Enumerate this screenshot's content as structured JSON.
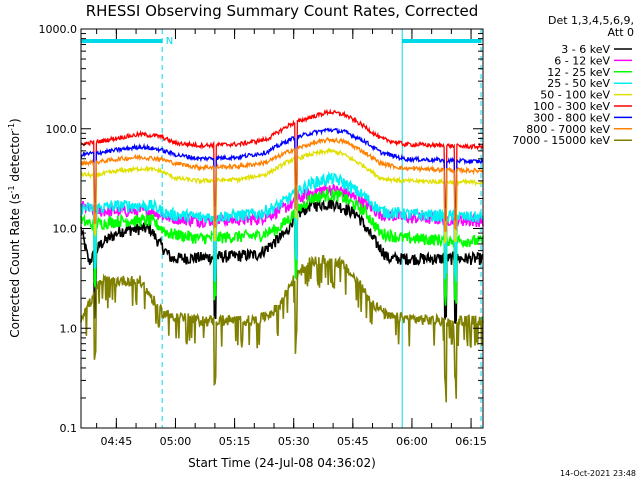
{
  "chart_data": {
    "type": "line",
    "title": "RHESSI Observing Summary Count Rates, Corrected",
    "xlabel": "Start Time (24-Jul-08 04:36:02)",
    "ylabel_main": "Corrected Count Rate (s",
    "ylabel_sup1": "-1",
    "ylabel_mid": " detector",
    "ylabel_sup2": "-1",
    "ylabel_end": ")",
    "yscale": "log",
    "ylim": [
      0.1,
      1000
    ],
    "xlim_minutes": [
      0,
      102
    ],
    "ytick_values": [
      0.1,
      1,
      10,
      100,
      1000
    ],
    "ytick_labels": [
      "0.1",
      "1.0",
      "10.0",
      "100.0",
      "1000.0"
    ],
    "xtick_minutes": [
      8.97,
      23.97,
      38.97,
      53.97,
      68.97,
      83.97,
      98.97
    ],
    "xtick_labels": [
      "04:45",
      "05:00",
      "05:15",
      "05:30",
      "05:45",
      "06:00",
      "06:15"
    ],
    "legend_header": [
      "Det 1,3,4,5,6,9,",
      "Att 0"
    ],
    "footer_date": "14-Oct-2021 23:48",
    "annotations": [
      {
        "text": "N",
        "minute": 21.5,
        "color": "#00d8e8"
      }
    ],
    "markers": {
      "night_bars": [
        [
          0,
          20.6
        ],
        [
          81.5,
          101.5
        ]
      ],
      "vertical_solid_minutes": [
        0,
        81.5
      ],
      "vertical_dashed_minutes": [
        20.6,
        101.5
      ],
      "color": "#00d8e8"
    },
    "series": [
      {
        "name": "3 - 6 keV",
        "color": "#000000",
        "points": [
          [
            0,
            10
          ],
          [
            2,
            4.6
          ],
          [
            5,
            7
          ],
          [
            10,
            9.5
          ],
          [
            15,
            10
          ],
          [
            17.5,
            10
          ],
          [
            20,
            7
          ],
          [
            23,
            5
          ],
          [
            35,
            5.2
          ],
          [
            45,
            5.5
          ],
          [
            52,
            9
          ],
          [
            54,
            13
          ],
          [
            58,
            17
          ],
          [
            64,
            18
          ],
          [
            70,
            14
          ],
          [
            74,
            8
          ],
          [
            78,
            5
          ],
          [
            82,
            5
          ],
          [
            88,
            5
          ],
          [
            100,
            5
          ],
          [
            102,
            5
          ]
        ]
      },
      {
        "name": "6 - 12 keV",
        "color": "#ff00ff",
        "points": [
          [
            0,
            17
          ],
          [
            3,
            15
          ],
          [
            10,
            15
          ],
          [
            18,
            15
          ],
          [
            22,
            13
          ],
          [
            30,
            12
          ],
          [
            45,
            12.5
          ],
          [
            50,
            15
          ],
          [
            54,
            18
          ],
          [
            57,
            22
          ],
          [
            62,
            25
          ],
          [
            66,
            24
          ],
          [
            72,
            18
          ],
          [
            76,
            14
          ],
          [
            82,
            13
          ],
          [
            100,
            12
          ],
          [
            102,
            12
          ]
        ]
      },
      {
        "name": "12 - 25 keV",
        "color": "#00ff00",
        "points": [
          [
            0,
            12
          ],
          [
            3,
            11
          ],
          [
            10,
            12
          ],
          [
            18,
            12
          ],
          [
            22,
            9
          ],
          [
            30,
            8
          ],
          [
            45,
            8.5
          ],
          [
            50,
            10
          ],
          [
            54,
            14
          ],
          [
            58,
            20
          ],
          [
            63,
            22
          ],
          [
            66,
            21
          ],
          [
            72,
            15
          ],
          [
            76,
            9
          ],
          [
            82,
            8
          ],
          [
            100,
            7.5
          ],
          [
            102,
            7.5
          ]
        ]
      },
      {
        "name": "25 - 50 keV",
        "color": "#00f0f0",
        "points": [
          [
            0,
            16
          ],
          [
            3,
            16
          ],
          [
            10,
            17
          ],
          [
            18,
            17
          ],
          [
            22,
            14
          ],
          [
            30,
            13
          ],
          [
            45,
            14
          ],
          [
            50,
            17
          ],
          [
            54,
            22
          ],
          [
            58,
            28
          ],
          [
            63,
            32
          ],
          [
            66,
            30
          ],
          [
            72,
            21
          ],
          [
            76,
            15
          ],
          [
            82,
            14
          ],
          [
            100,
            13
          ],
          [
            102,
            13
          ]
        ]
      },
      {
        "name": "50 - 100 keV",
        "color": "#e0e000",
        "points": [
          [
            0,
            35
          ],
          [
            3,
            34
          ],
          [
            10,
            38
          ],
          [
            16,
            40
          ],
          [
            20,
            38
          ],
          [
            24,
            32
          ],
          [
            30,
            30
          ],
          [
            40,
            31
          ],
          [
            47,
            35
          ],
          [
            53,
            48
          ],
          [
            58,
            55
          ],
          [
            63,
            60
          ],
          [
            66,
            57
          ],
          [
            72,
            42
          ],
          [
            76,
            32
          ],
          [
            82,
            30
          ],
          [
            100,
            29
          ],
          [
            102,
            29
          ]
        ]
      },
      {
        "name": "100 - 300 keV",
        "color": "#ff0000",
        "points": [
          [
            0,
            70
          ],
          [
            5,
            75
          ],
          [
            10,
            82
          ],
          [
            15,
            88
          ],
          [
            20,
            84
          ],
          [
            24,
            72
          ],
          [
            30,
            68
          ],
          [
            40,
            70
          ],
          [
            47,
            78
          ],
          [
            53,
            110
          ],
          [
            58,
            130
          ],
          [
            63,
            148
          ],
          [
            67,
            138
          ],
          [
            72,
            105
          ],
          [
            76,
            80
          ],
          [
            82,
            70
          ],
          [
            100,
            66
          ],
          [
            102,
            66
          ]
        ]
      },
      {
        "name": "300 - 800 keV",
        "color": "#0000ff",
        "points": [
          [
            0,
            55
          ],
          [
            5,
            58
          ],
          [
            10,
            62
          ],
          [
            15,
            66
          ],
          [
            20,
            62
          ],
          [
            24,
            55
          ],
          [
            30,
            50
          ],
          [
            40,
            52
          ],
          [
            47,
            58
          ],
          [
            53,
            78
          ],
          [
            58,
            90
          ],
          [
            63,
            98
          ],
          [
            67,
            93
          ],
          [
            72,
            75
          ],
          [
            76,
            58
          ],
          [
            82,
            50
          ],
          [
            100,
            47
          ],
          [
            102,
            47
          ]
        ]
      },
      {
        "name": "800 - 7000 keV",
        "color": "#ff8000",
        "points": [
          [
            0,
            45
          ],
          [
            5,
            47
          ],
          [
            10,
            50
          ],
          [
            15,
            52
          ],
          [
            20,
            50
          ],
          [
            24,
            45
          ],
          [
            30,
            41
          ],
          [
            40,
            42
          ],
          [
            47,
            46
          ],
          [
            53,
            60
          ],
          [
            58,
            70
          ],
          [
            63,
            78
          ],
          [
            67,
            74
          ],
          [
            72,
            58
          ],
          [
            76,
            45
          ],
          [
            82,
            40
          ],
          [
            100,
            38
          ],
          [
            102,
            38
          ]
        ]
      },
      {
        "name": "7000 - 15000 keV",
        "color": "#808000",
        "points": [
          [
            0,
            1.3
          ],
          [
            3,
            2
          ],
          [
            5,
            3
          ],
          [
            10,
            3
          ],
          [
            15,
            3
          ],
          [
            18,
            2
          ],
          [
            21,
            1.4
          ],
          [
            30,
            1.2
          ],
          [
            45,
            1.2
          ],
          [
            50,
            1.6
          ],
          [
            54,
            3.2
          ],
          [
            58,
            4.6
          ],
          [
            62,
            4.8
          ],
          [
            66,
            4.5
          ],
          [
            70,
            3
          ],
          [
            74,
            1.8
          ],
          [
            78,
            1.3
          ],
          [
            90,
            1.2
          ],
          [
            102,
            1.2
          ]
        ]
      }
    ],
    "events": [
      {
        "minute": 3.5,
        "note": "dip"
      },
      {
        "minute": 34.0,
        "note": "dip"
      },
      {
        "minute": 54.5,
        "note": "dip"
      },
      {
        "minute": 92.5,
        "note": "dip"
      },
      {
        "minute": 95.0,
        "note": "dip"
      }
    ],
    "grid": false,
    "legend_position": "right"
  }
}
